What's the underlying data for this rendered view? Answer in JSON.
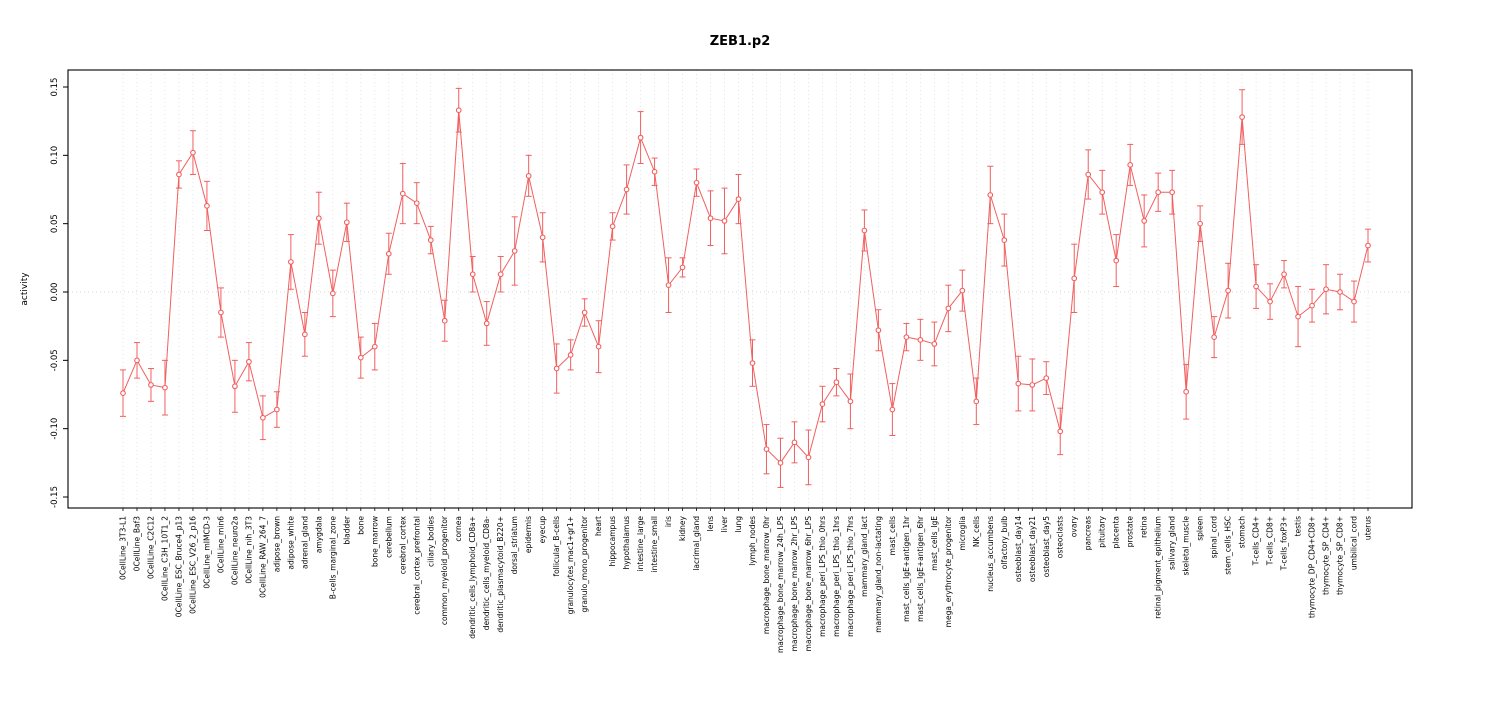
{
  "chart_data": {
    "type": "line",
    "title": "ZEB1.p2",
    "xlabel": "",
    "ylabel": "activity",
    "ylim": [
      -0.15,
      0.15
    ],
    "yticks": [
      -0.15,
      -0.1,
      -0.05,
      0.0,
      0.05,
      0.1,
      0.15
    ],
    "ytick_labels": [
      "-0.15",
      "-0.10",
      "-0.05",
      "0.00",
      "0.05",
      "0.10",
      "0.15"
    ],
    "grid": "vertical-dotted-per-category, horizontal-dotted-at-zero",
    "legend": "none",
    "marker": "open-circle",
    "error_bars": true,
    "colors": {
      "series": "#f25f5f",
      "grid": "#dcdcdc",
      "zero_line": "#d9d9d9",
      "axis": "#000000",
      "background": "#ffffff"
    },
    "categories": [
      "0CellLine_3T3-L1",
      "0CellLine_Baf3",
      "0CellLine_C2C12",
      "0CellLine_C3H_10T1_2",
      "0CellLine_ESC_Bruce4_p13",
      "0CellLine_ESC_V26_2_p16",
      "0CellLine_mIMCD-3",
      "0CellLine_min6",
      "0CellLine_neuro2a",
      "0CellLine_nih_3T3",
      "0CellLine_RAW_264_7",
      "adipose_brown",
      "adipose_white",
      "adrenal_gland",
      "amygdala",
      "B-cells_marginal_zone",
      "bladder",
      "bone",
      "bone_marrow",
      "cerebellum",
      "cerebral_cortex",
      "cerebral_cortex_prefrontal",
      "ciliary_bodies",
      "common_myeloid_progenitor",
      "cornea",
      "dendritic_cells_lymphoid_CD8a+",
      "dendritic_cells_myeloid_CD8a-",
      "dendritic_plasmacytoid_B220+",
      "dorsal_striatum",
      "epidermis",
      "eyecup",
      "follicular_B-cells",
      "granulocytes_mac1+gr1+",
      "granulo_mono_progenitor",
      "heart",
      "hippocampus",
      "hypothalamus",
      "intestine_large",
      "intestine_small",
      "iris",
      "kidney",
      "lacrimal_gland",
      "lens",
      "liver",
      "lung",
      "lymph_nodes",
      "macrophage_bone_marrow_0hr",
      "macrophage_bone_marrow_24h_LPS",
      "macrophage_bone_marrow_2hr_LPS",
      "macrophage_bone_marrow_6hr_LPS",
      "macrophage_peri_LPS_thio_0hrs",
      "macrophage_peri_LPS_thio_1hrs",
      "macrophage_peri_LPS_thio_7hrs",
      "mammary_gland_lact",
      "mammary_gland_non-lactating",
      "mast_cells",
      "mast_cells_IgE+antigen_1hr",
      "mast_cells_IgE+antigen_6hr",
      "mast_cells_IgE",
      "mega_erythrocyte_progenitor",
      "microglia",
      "NK_cells",
      "nucleus_accumbens",
      "olfactory_bulb",
      "osteoblast_day14",
      "osteoblast_day21",
      "osteoblast_day5",
      "osteoclasts",
      "ovary",
      "pancreas",
      "pituitary",
      "placenta",
      "prostate",
      "retina",
      "retinal_pigment_epithelium",
      "salivary_gland",
      "skeletal_muscle",
      "spleen",
      "spinal_cord",
      "stem_cells_HSC",
      "stomach",
      "T-cells_CD4+",
      "T-cells_CD8+",
      "T-cells_foxP3+",
      "testis",
      "thymocyte_DP_CD4+CD8+",
      "thymocyte_SP_CD4+",
      "thymocyte_SP_CD8+",
      "umbilical_cord",
      "uterus"
    ],
    "series": [
      {
        "name": "activity",
        "values": [
          -0.074,
          -0.05,
          -0.068,
          -0.07,
          0.086,
          0.102,
          0.063,
          -0.015,
          -0.069,
          -0.051,
          -0.092,
          -0.086,
          0.022,
          -0.031,
          0.054,
          -0.001,
          0.051,
          -0.048,
          -0.04,
          0.028,
          0.072,
          0.065,
          0.038,
          -0.021,
          0.133,
          0.013,
          -0.023,
          0.013,
          0.03,
          0.085,
          0.04,
          -0.056,
          -0.046,
          -0.015,
          -0.04,
          0.048,
          0.075,
          0.113,
          0.088,
          0.005,
          0.018,
          0.08,
          0.054,
          0.052,
          0.068,
          -0.052,
          -0.115,
          -0.125,
          -0.11,
          -0.121,
          -0.082,
          -0.066,
          -0.08,
          0.045,
          -0.028,
          -0.086,
          -0.033,
          -0.035,
          -0.038,
          -0.012,
          0.001,
          -0.08,
          0.071,
          0.038,
          -0.067,
          -0.068,
          -0.063,
          -0.102,
          0.01,
          0.086,
          0.073,
          0.023,
          0.093,
          0.052,
          0.073,
          0.073,
          -0.073,
          0.05,
          -0.033,
          0.001,
          0.128,
          0.004,
          -0.007,
          0.013,
          -0.018,
          -0.01,
          0.002,
          0.0,
          -0.007,
          0.034
        ],
        "errors": [
          0.017,
          0.013,
          0.012,
          0.02,
          0.01,
          0.016,
          0.018,
          0.018,
          0.019,
          0.014,
          0.016,
          0.013,
          0.02,
          0.016,
          0.019,
          0.017,
          0.014,
          0.015,
          0.017,
          0.015,
          0.022,
          0.015,
          0.01,
          0.015,
          0.016,
          0.013,
          0.016,
          0.013,
          0.025,
          0.015,
          0.018,
          0.018,
          0.011,
          0.01,
          0.019,
          0.01,
          0.018,
          0.019,
          0.01,
          0.02,
          0.007,
          0.01,
          0.02,
          0.024,
          0.018,
          0.017,
          0.018,
          0.018,
          0.015,
          0.02,
          0.013,
          0.01,
          0.02,
          0.015,
          0.015,
          0.019,
          0.01,
          0.015,
          0.016,
          0.017,
          0.015,
          0.017,
          0.021,
          0.019,
          0.02,
          0.019,
          0.012,
          0.017,
          0.025,
          0.018,
          0.016,
          0.019,
          0.015,
          0.019,
          0.014,
          0.016,
          0.02,
          0.013,
          0.015,
          0.02,
          0.02,
          0.016,
          0.013,
          0.01,
          0.022,
          0.012,
          0.018,
          0.013,
          0.015,
          0.012
        ]
      }
    ]
  }
}
